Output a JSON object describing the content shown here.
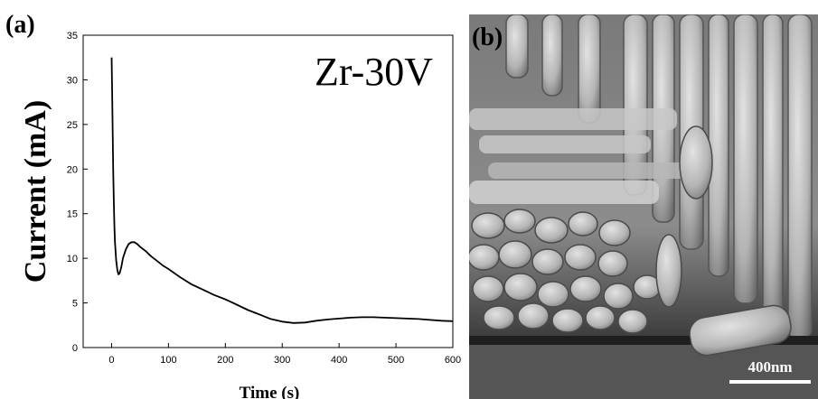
{
  "figure": {
    "panel_a_label": "(a)",
    "panel_b_label": "(b)",
    "annotation": "Zr-30V",
    "scale_bar_label": "400nm"
  },
  "chart_data": {
    "type": "line",
    "title": "",
    "xlabel": "Time (s)",
    "ylabel": "Current (mA)",
    "xlim": [
      -50,
      600
    ],
    "ylim": [
      0,
      35
    ],
    "xticks": [
      0,
      100,
      200,
      300,
      400,
      500,
      600
    ],
    "yticks": [
      0,
      5,
      10,
      15,
      20,
      25,
      30,
      35
    ],
    "grid": false,
    "legend": "none",
    "series": [
      {
        "color": "#000000",
        "x": [
          0,
          1,
          2,
          3,
          4,
          5,
          6,
          8,
          10,
          12,
          14,
          17,
          20,
          25,
          30,
          35,
          40,
          45,
          50,
          60,
          70,
          80,
          90,
          100,
          120,
          140,
          160,
          180,
          200,
          220,
          240,
          260,
          280,
          300,
          320,
          340,
          360,
          380,
          400,
          420,
          440,
          460,
          480,
          500,
          520,
          540,
          560,
          580,
          600
        ],
        "y": [
          32.5,
          28.5,
          24.0,
          19.5,
          16.0,
          13.5,
          11.8,
          9.8,
          8.7,
          8.2,
          8.3,
          9.0,
          10.0,
          11.0,
          11.6,
          11.8,
          11.8,
          11.6,
          11.3,
          10.8,
          10.2,
          9.7,
          9.2,
          8.8,
          7.9,
          7.1,
          6.5,
          5.9,
          5.4,
          4.8,
          4.2,
          3.7,
          3.2,
          2.9,
          2.75,
          2.8,
          3.0,
          3.15,
          3.25,
          3.35,
          3.4,
          3.4,
          3.35,
          3.3,
          3.25,
          3.2,
          3.1,
          3.0,
          2.95
        ]
      }
    ]
  }
}
